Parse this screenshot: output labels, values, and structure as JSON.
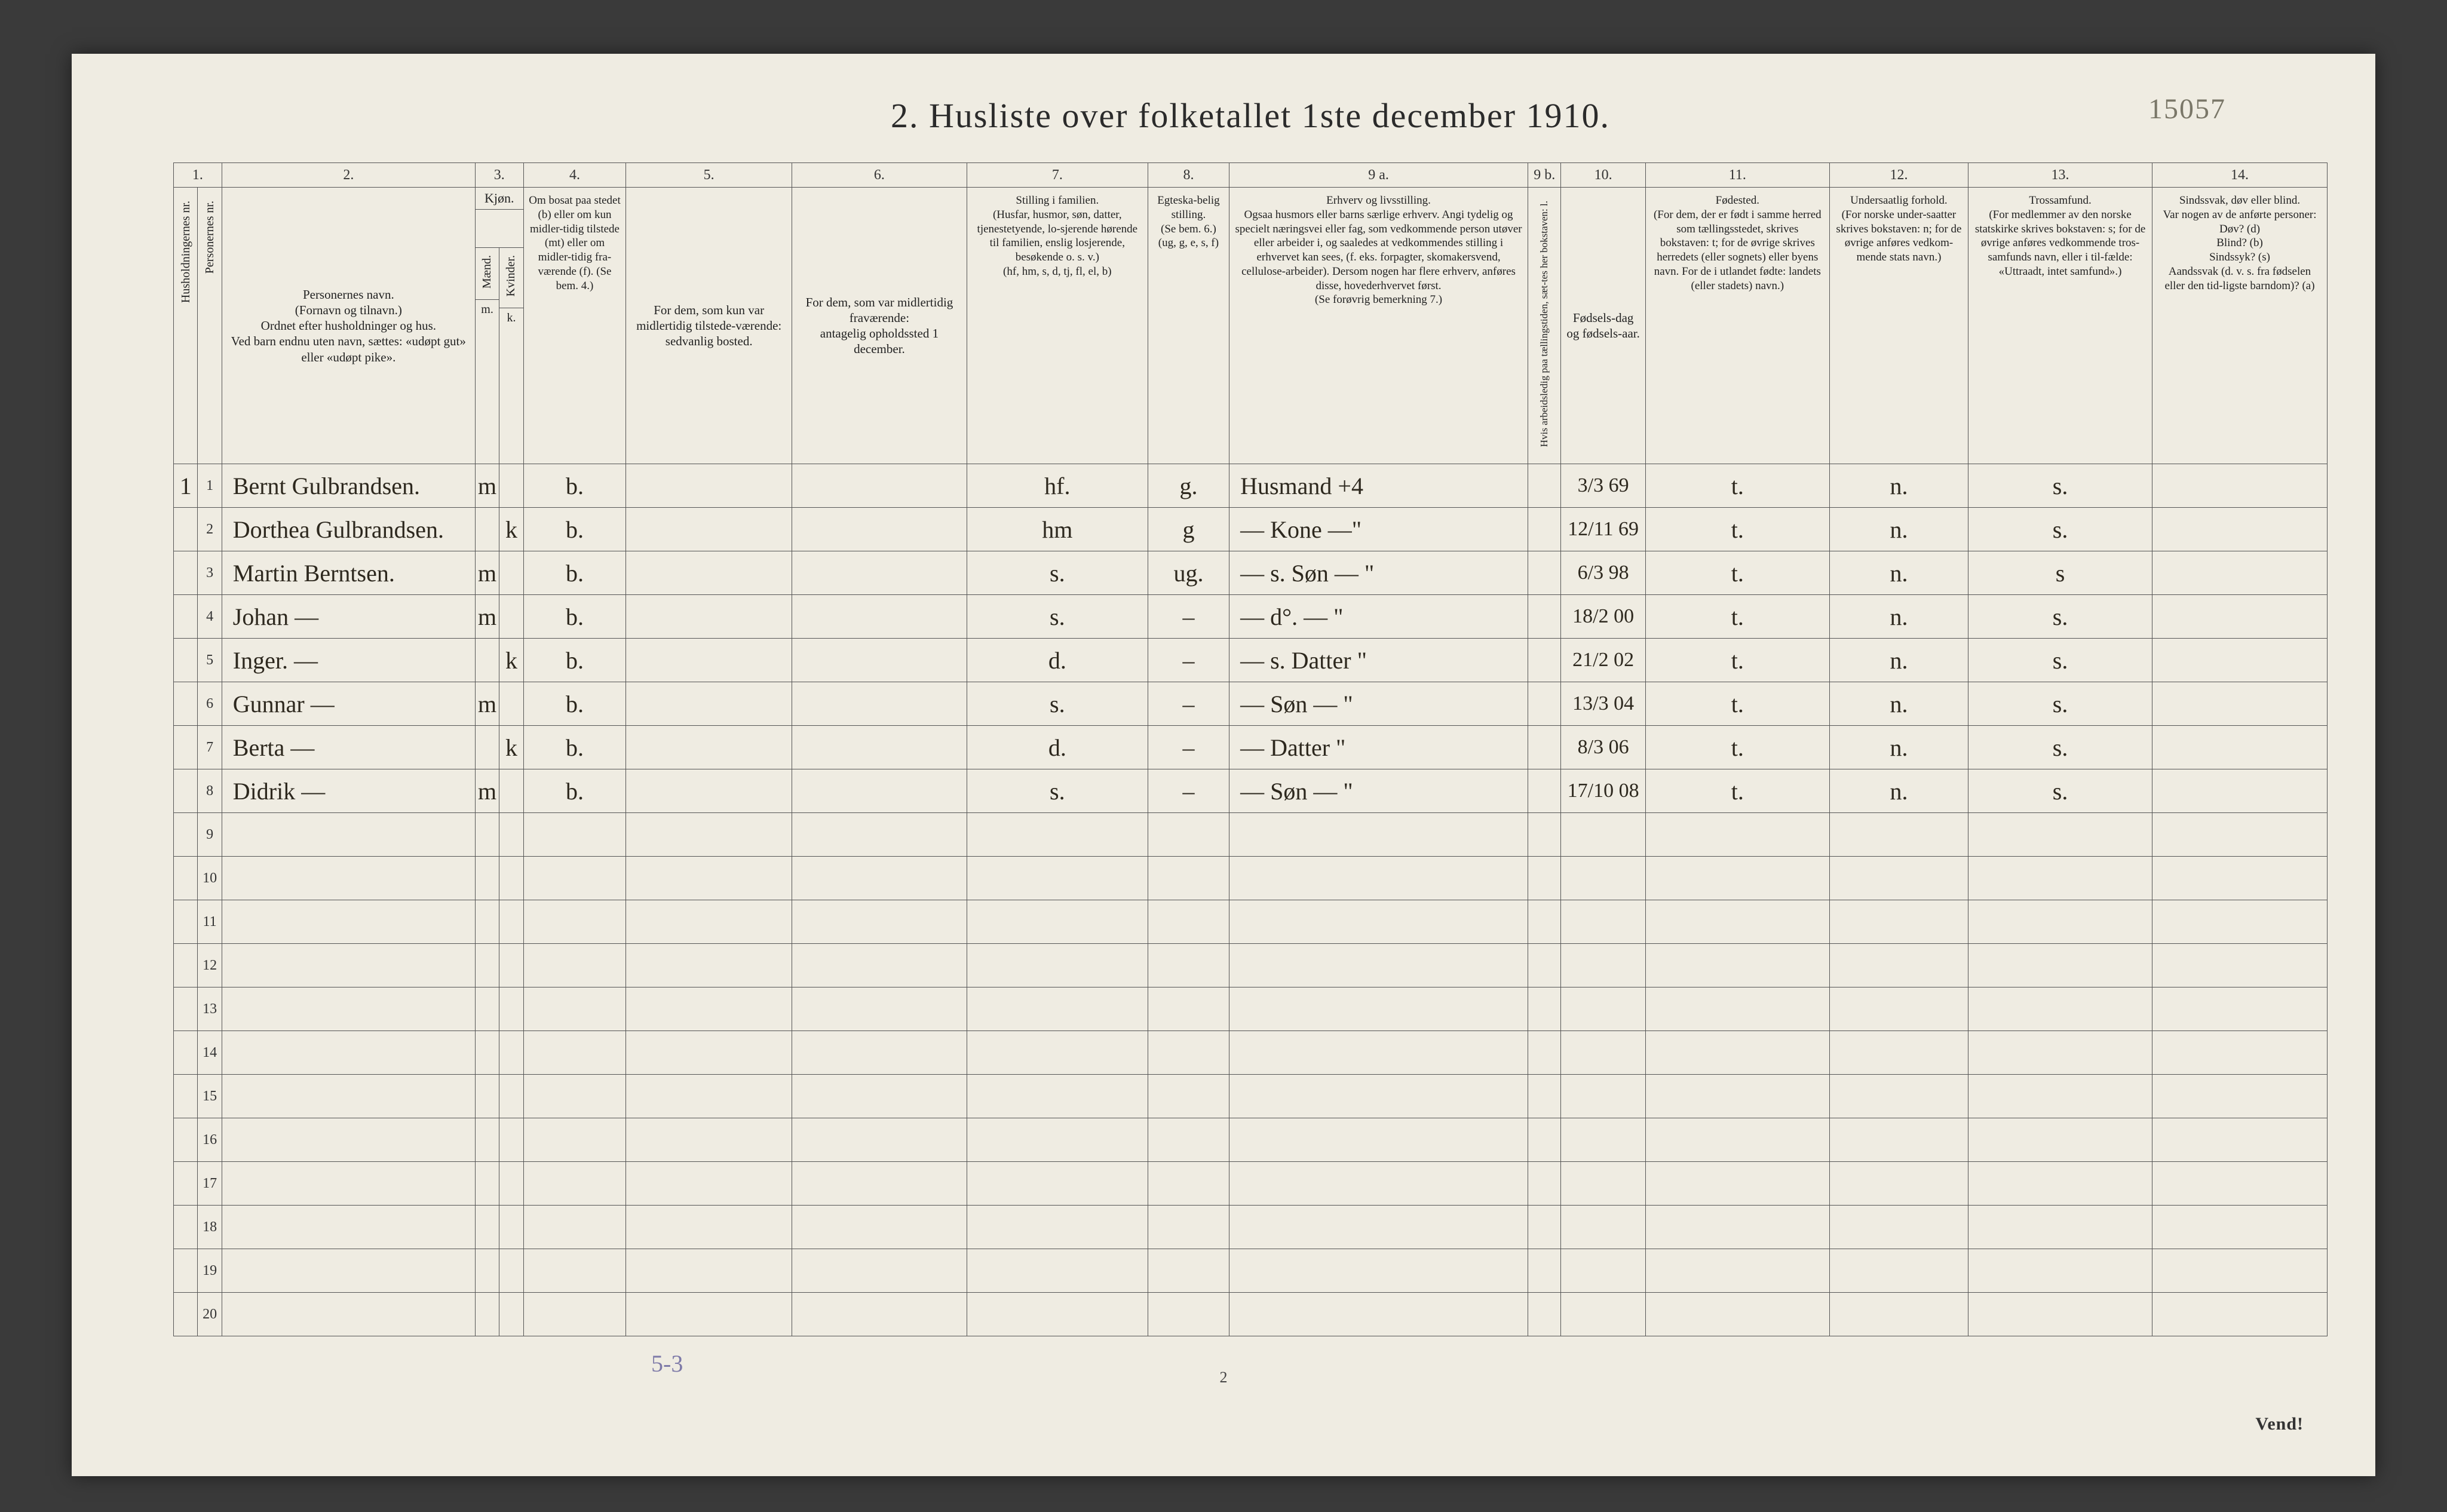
{
  "page": {
    "pencil_top_right": "15057",
    "title": "2.   Husliste over folketallet 1ste december 1910.",
    "under_note": "5-3",
    "page_number": "2",
    "vend": "Vend!"
  },
  "colnums": {
    "c1": "1.",
    "c2": "2.",
    "c3": "3.",
    "c4": "4.",
    "c5": "5.",
    "c6": "6.",
    "c7": "7.",
    "c8": "8.",
    "c9a": "9 a.",
    "c9b": "9 b.",
    "c10": "10.",
    "c11": "11.",
    "c12": "12.",
    "c13": "13.",
    "c14": "14."
  },
  "headers": {
    "c1": "Husholdningernes nr.",
    "c1b": "Personernes nr.",
    "c2": "Personernes navn.\n(Fornavn og tilnavn.)\nOrdnet efter husholdninger og hus.\nVed barn endnu uten navn, sættes: «udøpt gut» eller «udøpt pike».",
    "c3_top": "Kjøn.",
    "c3_m": "Mænd.",
    "c3_k": "Kvinder.",
    "c3_mk": "m.  k.",
    "c4": "Om bosat paa stedet (b) eller om kun midler-tidig tilstede (mt) eller om midler-tidig fra-værende (f). (Se bem. 4.)",
    "c5": "For dem, som kun var midlertidig tilstede-værende:\nsedvanlig bosted.",
    "c6": "For dem, som var midlertidig fraværende:\nantagelig opholdssted 1 december.",
    "c7": "Stilling i familien.\n(Husfar, husmor, søn, datter, tjenestetyende, lo-sjerende hørende til familien, enslig losjerende, besøkende o. s. v.)\n(hf, hm, s, d, tj, fl, el, b)",
    "c8": "Egteska-belig stilling.\n(Se bem. 6.)\n(ug, g, e, s, f)",
    "c9a": "Erhverv og livsstilling.\nOgsaa husmors eller barns særlige erhverv. Angi tydelig og specielt næringsvei eller fag, som vedkommende person utøver eller arbeider i, og saaledes at vedkommendes stilling i erhvervet kan sees, (f. eks. forpagter, skomakersvend, cellulose-arbeider). Dersom nogen har flere erhverv, anføres disse, hovederhvervet først.\n(Se forøvrig bemerkning 7.)",
    "c9b": "Hvis arbeidsledig paa tællingstiden, sæt-tes her bokstaven: l.",
    "c10": "Fødsels-dag og fødsels-aar.",
    "c11": "Fødested.\n(For dem, der er født i samme herred som tællingsstedet, skrives bokstaven: t; for de øvrige skrives herredets (eller sognets) eller byens navn. For de i utlandet fødte: landets (eller stadets) navn.)",
    "c12": "Undersaatlig forhold.\n(For norske under-saatter skrives bokstaven: n; for de øvrige anføres vedkom-mende stats navn.)",
    "c13": "Trossamfund.\n(For medlemmer av den norske statskirke skrives bokstaven: s; for de øvrige anføres vedkommende tros-samfunds navn, eller i til-fælde: «Uttraadt, intet samfund».)",
    "c14": "Sindssvak, døv eller blind.\nVar nogen av de anførte personer:\nDøv?        (d)\nBlind?       (b)\nSindssyk?  (s)\nAandssvak (d. v. s. fra fødselen eller den tid-ligste barndom)?  (a)"
  },
  "rows": [
    {
      "hh": "1",
      "p": "1",
      "name": "Bernt Gulbrandsen.",
      "m": "m",
      "k": "",
      "b": "b.",
      "c5": "",
      "c6": "",
      "c7": "hf.",
      "c8": "g.",
      "c9a": "Husmand        +4",
      "c9b": "",
      "c10": "3/3 69",
      "c11": "t.",
      "c12": "n.",
      "c13": "s.",
      "c14": ""
    },
    {
      "hh": "",
      "p": "2",
      "name": "Dorthea Gulbrandsen.",
      "m": "",
      "k": "k",
      "b": "b.",
      "c5": "",
      "c6": "",
      "c7": "hm",
      "c8": "g",
      "c9a": "—    Kone   —\"",
      "c9b": "",
      "c10": "12/11 69",
      "c11": "t.",
      "c12": "n.",
      "c13": "s.",
      "c14": ""
    },
    {
      "hh": "",
      "p": "3",
      "name": "Martin Berntsen.",
      "m": "m",
      "k": "",
      "b": "b.",
      "c5": "",
      "c6": "",
      "c7": "s.",
      "c8": "ug.",
      "c9a": "—   s. Søn  —  \"",
      "c9b": "",
      "c10": "6/3 98",
      "c11": "t.",
      "c12": "n.",
      "c13": "s",
      "c14": ""
    },
    {
      "hh": "",
      "p": "4",
      "name": "Johan     —",
      "m": "m",
      "k": "",
      "b": "b.",
      "c5": "",
      "c6": "",
      "c7": "s.",
      "c8": "–",
      "c9a": "—       d°.      — \"",
      "c9b": "",
      "c10": "18/2 00",
      "c11": "t.",
      "c12": "n.",
      "c13": "s.",
      "c14": ""
    },
    {
      "hh": "",
      "p": "5",
      "name": "Inger.    —",
      "m": "",
      "k": "k",
      "b": "b.",
      "c5": "",
      "c6": "",
      "c7": "d.",
      "c8": "–",
      "c9a": "—   s. Datter   \"",
      "c9b": "",
      "c10": "21/2 02",
      "c11": "t.",
      "c12": "n.",
      "c13": "s.",
      "c14": ""
    },
    {
      "hh": "",
      "p": "6",
      "name": "Gunnar   —",
      "m": "m",
      "k": "",
      "b": "b.",
      "c5": "",
      "c6": "",
      "c7": "s.",
      "c8": "–",
      "c9a": "—         Søn   — \"",
      "c9b": "",
      "c10": "13/3 04",
      "c11": "t.",
      "c12": "n.",
      "c13": "s.",
      "c14": ""
    },
    {
      "hh": "",
      "p": "7",
      "name": "Berta     —",
      "m": "",
      "k": "k",
      "b": "b.",
      "c5": "",
      "c6": "",
      "c7": "d.",
      "c8": "–",
      "c9a": "—        Datter  \"",
      "c9b": "",
      "c10": "8/3 06",
      "c11": "t.",
      "c12": "n.",
      "c13": "s.",
      "c14": ""
    },
    {
      "hh": "",
      "p": "8",
      "name": "Didrik    —",
      "m": "m",
      "k": "",
      "b": "b.",
      "c5": "",
      "c6": "",
      "c7": "s.",
      "c8": "–",
      "c9a": "—         Søn   — \"",
      "c9b": "",
      "c10": "17/10 08",
      "c11": "t.",
      "c12": "n.",
      "c13": "s.",
      "c14": ""
    }
  ],
  "empty_row_labels": [
    "9",
    "10",
    "11",
    "12",
    "13",
    "14",
    "15",
    "16",
    "17",
    "18",
    "19",
    "20"
  ],
  "style": {
    "paper_bg": "#efece2",
    "ink": "#2d281e",
    "print": "#2b2b2b",
    "border": "#555",
    "pencil": "#7a7768",
    "fonts": {
      "title_pt": 58,
      "header_pt": 21,
      "body_hand_pt": 40,
      "rownum_pt": 24
    }
  }
}
